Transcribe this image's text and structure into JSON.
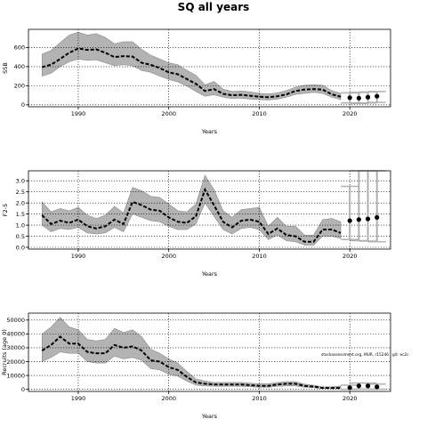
{
  "figure": {
    "title": "SQ all years",
    "annotation": "stockassessment.org, MUR, r15246 , git: ec2c"
  },
  "chart_data": [
    {
      "type": "line",
      "ylabel": "SSB",
      "xlabel": "Years",
      "xlim": [
        1984.5,
        2024.5
      ],
      "ylim": [
        -20,
        790
      ],
      "xticks": [
        1990,
        2000,
        2010,
        2020
      ],
      "yticks": [
        0,
        200,
        400,
        600
      ],
      "grid": true,
      "ribbon": true,
      "x": [
        1986,
        1987,
        1988,
        1989,
        1990,
        1991,
        1992,
        1993,
        1994,
        1995,
        1996,
        1997,
        1998,
        1999,
        2000,
        2001,
        2002,
        2003,
        2004,
        2005,
        2006,
        2007,
        2008,
        2009,
        2010,
        2011,
        2012,
        2013,
        2014,
        2015,
        2016,
        2017,
        2018,
        2019
      ],
      "estimate": [
        395,
        420,
        480,
        545,
        590,
        575,
        580,
        545,
        500,
        510,
        505,
        440,
        420,
        385,
        340,
        320,
        270,
        220,
        145,
        165,
        115,
        100,
        105,
        95,
        85,
        80,
        90,
        110,
        145,
        160,
        165,
        160,
        110,
        85
      ],
      "lower": [
        300,
        330,
        400,
        450,
        480,
        465,
        470,
        440,
        410,
        420,
        410,
        360,
        340,
        300,
        265,
        240,
        195,
        140,
        90,
        105,
        80,
        65,
        70,
        60,
        55,
        50,
        60,
        80,
        110,
        120,
        130,
        120,
        80,
        55
      ],
      "upper": [
        530,
        570,
        650,
        730,
        760,
        730,
        745,
        705,
        640,
        660,
        660,
        580,
        520,
        480,
        440,
        420,
        360,
        310,
        210,
        245,
        165,
        140,
        145,
        135,
        120,
        115,
        125,
        150,
        185,
        205,
        210,
        205,
        150,
        120
      ],
      "projection": {
        "x": [
          2020,
          2021,
          2022,
          2023
        ],
        "median": [
          75,
          70,
          80,
          90
        ],
        "lower": [
          20,
          15,
          20,
          25
        ],
        "upper": [
          125,
          130,
          135,
          140
        ]
      }
    },
    {
      "type": "line",
      "ylabel": "F2-5",
      "xlabel": "Years",
      "xlim": [
        1984.5,
        2024.5
      ],
      "ylim": [
        -0.08,
        3.45
      ],
      "xticks": [
        1990,
        2000,
        2010,
        2020
      ],
      "yticks": [
        0.0,
        0.5,
        1.0,
        1.5,
        2.0,
        2.5,
        3.0
      ],
      "ytick_labels": [
        "0.0",
        "0.5",
        "1.0",
        "1.5",
        "2.0",
        "2.5",
        "3.0"
      ],
      "grid": true,
      "ribbon": true,
      "x": [
        1986,
        1987,
        1988,
        1989,
        1990,
        1991,
        1992,
        1993,
        1994,
        1995,
        1996,
        1997,
        1998,
        1999,
        2000,
        2001,
        2002,
        2003,
        2004,
        2005,
        2006,
        2007,
        2008,
        2009,
        2010,
        2011,
        2012,
        2013,
        2014,
        2015,
        2016,
        2017,
        2018,
        2019
      ],
      "estimate": [
        1.45,
        1.05,
        1.2,
        1.1,
        1.25,
        0.95,
        0.85,
        0.95,
        1.25,
        1.05,
        2.05,
        1.9,
        1.7,
        1.65,
        1.35,
        1.15,
        1.1,
        1.4,
        2.6,
        1.9,
        1.15,
        0.9,
        1.2,
        1.25,
        1.15,
        0.6,
        0.85,
        0.55,
        0.5,
        0.25,
        0.25,
        0.8,
        0.8,
        0.65
      ],
      "lower": [
        1.0,
        0.7,
        0.85,
        0.8,
        0.9,
        0.65,
        0.6,
        0.65,
        0.9,
        0.7,
        1.5,
        1.35,
        1.2,
        1.15,
        0.95,
        0.8,
        0.8,
        1.05,
        2.0,
        1.4,
        0.8,
        0.6,
        0.85,
        0.9,
        0.8,
        0.35,
        0.55,
        0.3,
        0.25,
        0.1,
        0.1,
        0.5,
        0.5,
        0.4
      ],
      "upper": [
        2.05,
        1.6,
        1.75,
        1.65,
        1.8,
        1.45,
        1.3,
        1.45,
        1.85,
        1.55,
        2.7,
        2.55,
        2.3,
        2.25,
        1.95,
        1.65,
        1.6,
        1.95,
        3.25,
        2.6,
        1.65,
        1.35,
        1.7,
        1.75,
        1.8,
        0.95,
        1.35,
        0.95,
        0.95,
        0.55,
        0.55,
        1.25,
        1.3,
        1.15
      ],
      "projection": {
        "x": [
          2020,
          2021,
          2022,
          2023
        ],
        "median": [
          1.2,
          1.25,
          1.28,
          1.35
        ],
        "lower": [
          0.35,
          0.3,
          0.28,
          0.25
        ],
        "upper": [
          2.75,
          3.45,
          3.45,
          3.45
        ]
      }
    },
    {
      "type": "line",
      "ylabel": "Recruits (age 0)",
      "xlabel": "Years",
      "xlim": [
        1984.5,
        2024.5
      ],
      "ylim": [
        -1500,
        55000
      ],
      "xticks": [
        1990,
        2000,
        2010,
        2020
      ],
      "yticks": [
        0,
        10000,
        20000,
        30000,
        40000,
        50000
      ],
      "grid": true,
      "ribbon": true,
      "x": [
        1986,
        1987,
        1988,
        1989,
        1990,
        1991,
        1992,
        1993,
        1994,
        1995,
        1996,
        1997,
        1998,
        1999,
        2000,
        2001,
        2002,
        2003,
        2004,
        2005,
        2006,
        2007,
        2008,
        2009,
        2010,
        2011,
        2012,
        2013,
        2014,
        2015,
        2016,
        2017,
        2018,
        2019
      ],
      "estimate": [
        28000,
        32000,
        38000,
        33000,
        33000,
        27000,
        26000,
        26000,
        32000,
        30000,
        31000,
        28000,
        21000,
        20000,
        16000,
        14000,
        9000,
        5000,
        4000,
        3500,
        3500,
        3500,
        3500,
        3000,
        2500,
        2500,
        3500,
        4000,
        4000,
        2500,
        2000,
        1000,
        1000,
        1000
      ],
      "lower": [
        20000,
        23000,
        27000,
        26000,
        26000,
        20000,
        19000,
        19000,
        24000,
        22000,
        23000,
        21000,
        15000,
        14000,
        11000,
        9500,
        6000,
        3000,
        2500,
        2200,
        2200,
        2200,
        2200,
        1800,
        1500,
        1500,
        2200,
        2500,
        2500,
        1500,
        1200,
        600,
        500,
        500
      ],
      "upper": [
        40000,
        45000,
        52000,
        45000,
        43000,
        36000,
        35000,
        36000,
        44000,
        41000,
        43000,
        38000,
        29000,
        26000,
        22000,
        19000,
        13000,
        7500,
        6000,
        5000,
        5000,
        5000,
        5000,
        4500,
        4000,
        4000,
        5000,
        5500,
        5500,
        3800,
        3000,
        1800,
        1800,
        2500
      ],
      "projection": {
        "x": [
          2020,
          2021,
          2022,
          2023
        ],
        "median": [
          1200,
          2500,
          2500,
          1800
        ],
        "lower": [
          0,
          200,
          200,
          100
        ],
        "upper": [
          3000,
          4500,
          4500,
          3800
        ]
      }
    }
  ]
}
